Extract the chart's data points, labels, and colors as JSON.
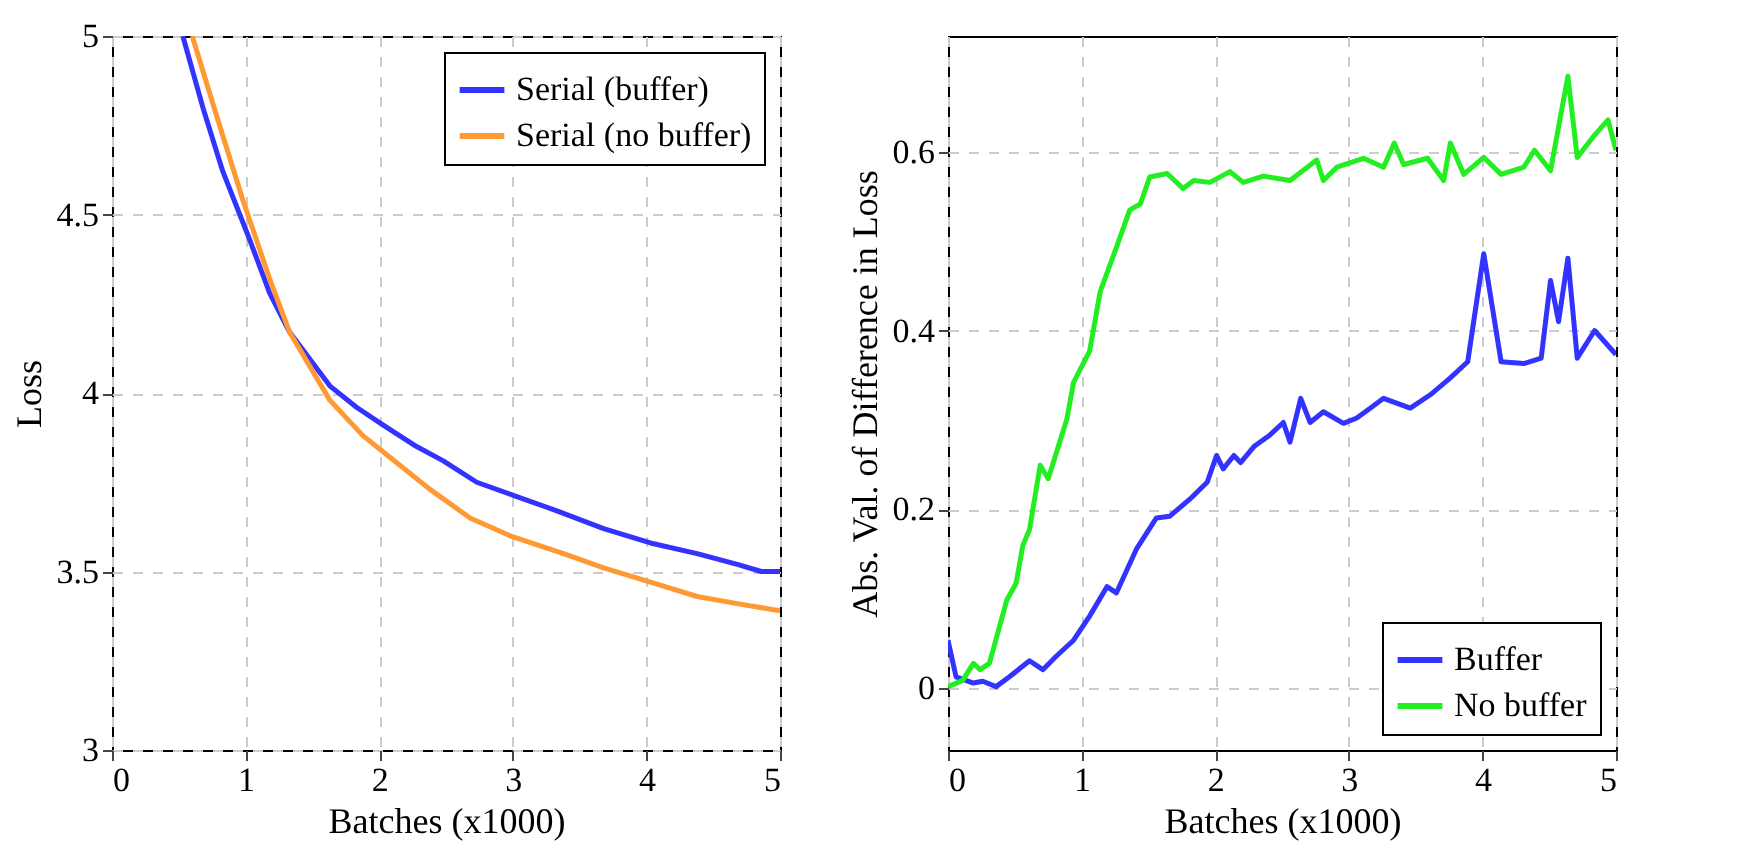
{
  "chart_data": [
    {
      "type": "line",
      "xlabel": "Batches (x1000)",
      "ylabel": "Loss",
      "xlim": [
        0,
        5
      ],
      "ylim": [
        3,
        5
      ],
      "xticks": [
        0,
        1,
        2,
        3,
        4,
        5
      ],
      "yticks": [
        3,
        3.5,
        4,
        4.5,
        5
      ],
      "grid": true,
      "legend": "top right",
      "series": [
        {
          "name": "Serial (buffer)",
          "color": "#3333ff",
          "x": [
            0.53,
            0.68,
            0.83,
            1.03,
            1.18,
            1.33,
            1.63,
            1.83,
            2.03,
            2.28,
            2.48,
            2.73,
            3.03,
            3.33,
            3.68,
            4.03,
            4.38,
            4.68,
            4.86,
            5
          ],
          "values": [
            5,
            4.8,
            4.62,
            4.43,
            4.28,
            4.17,
            4.02,
            3.96,
            3.91,
            3.85,
            3.81,
            3.75,
            3.71,
            3.67,
            3.62,
            3.58,
            3.55,
            3.52,
            3.5,
            3.5
          ]
        },
        {
          "name": "Serial (no buffer)",
          "color": "#ff9933",
          "x": [
            0.6,
            0.78,
            0.98,
            1.18,
            1.33,
            1.63,
            1.88,
            2.08,
            2.38,
            2.68,
            2.98,
            3.38,
            3.68,
            4.03,
            4.38,
            4.68,
            5
          ],
          "values": [
            5,
            4.78,
            4.54,
            4.32,
            4.17,
            3.98,
            3.88,
            3.82,
            3.73,
            3.65,
            3.6,
            3.55,
            3.51,
            3.47,
            3.43,
            3.41,
            3.39
          ]
        }
      ]
    },
    {
      "type": "line",
      "xlabel": "Batches (x1000)",
      "ylabel": "Abs. Val. of Difference in Loss",
      "xlim": [
        0,
        5
      ],
      "ylim": [
        -0.07,
        0.73
      ],
      "xticks": [
        0,
        1,
        2,
        3,
        4,
        5
      ],
      "yticks": [
        0,
        0.2,
        0.4,
        0.6
      ],
      "grid": true,
      "legend": "bottom right",
      "series": [
        {
          "name": "Buffer",
          "color": "#3333ff",
          "x": [
            0,
            0.06,
            0.19,
            0.26,
            0.36,
            0.46,
            0.61,
            0.71,
            0.81,
            0.94,
            1.06,
            1.19,
            1.26,
            1.41,
            1.56,
            1.66,
            1.81,
            1.94,
            2.01,
            2.06,
            2.14,
            2.19,
            2.29,
            2.41,
            2.51,
            2.56,
            2.64,
            2.71,
            2.81,
            2.96,
            3.06,
            3.16,
            3.26,
            3.46,
            3.61,
            3.76,
            3.89,
            4.01,
            4.14,
            4.31,
            4.44,
            4.51,
            4.57,
            4.64,
            4.71,
            4.84,
            5
          ],
          "values": [
            0.053,
            0.012,
            0.005,
            0.007,
            0.001,
            0.012,
            0.03,
            0.02,
            0.035,
            0.053,
            0.08,
            0.113,
            0.106,
            0.155,
            0.19,
            0.192,
            0.211,
            0.23,
            0.26,
            0.245,
            0.26,
            0.252,
            0.27,
            0.283,
            0.297,
            0.275,
            0.324,
            0.297,
            0.309,
            0.296,
            0.302,
            0.313,
            0.324,
            0.313,
            0.328,
            0.347,
            0.365,
            0.486,
            0.365,
            0.363,
            0.369,
            0.456,
            0.41,
            0.481,
            0.369,
            0.4,
            0.373
          ]
        },
        {
          "name": "No buffer",
          "color": "#22ee22",
          "x": [
            0,
            0.11,
            0.19,
            0.24,
            0.31,
            0.44,
            0.51,
            0.56,
            0.61,
            0.69,
            0.75,
            0.89,
            0.94,
            1.06,
            1.14,
            1.26,
            1.36,
            1.44,
            1.51,
            1.64,
            1.76,
            1.84,
            1.96,
            2.11,
            2.21,
            2.36,
            2.56,
            2.76,
            2.81,
            2.91,
            3.11,
            3.26,
            3.34,
            3.41,
            3.59,
            3.71,
            3.76,
            3.86,
            4.01,
            4.14,
            4.31,
            4.39,
            4.51,
            4.64,
            4.71,
            4.84,
            4.94,
            5
          ],
          "values": [
            0.001,
            0.008,
            0.027,
            0.02,
            0.027,
            0.098,
            0.117,
            0.159,
            0.177,
            0.249,
            0.234,
            0.301,
            0.342,
            0.377,
            0.444,
            0.493,
            0.535,
            0.542,
            0.572,
            0.576,
            0.559,
            0.568,
            0.566,
            0.578,
            0.566,
            0.573,
            0.568,
            0.591,
            0.568,
            0.583,
            0.593,
            0.583,
            0.61,
            0.586,
            0.593,
            0.568,
            0.61,
            0.575,
            0.594,
            0.575,
            0.583,
            0.602,
            0.579,
            0.685,
            0.594,
            0.619,
            0.636,
            0.602
          ]
        }
      ]
    }
  ]
}
